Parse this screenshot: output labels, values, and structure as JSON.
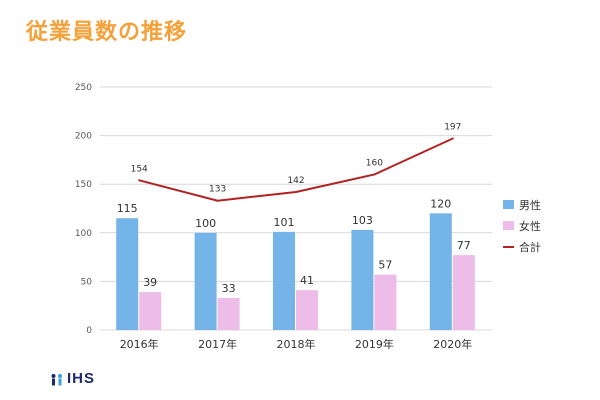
{
  "title": "従業員数の推移",
  "logo": {
    "text": "IHS",
    "icon": "ihs-logo-mark"
  },
  "colors": {
    "title": "#F5A13A",
    "male": "#74B4E8",
    "female": "#EEBCE9",
    "total": "#B22222",
    "grid": "#D9D9D9",
    "axis_text": "#595959"
  },
  "chart_data": {
    "type": "bar",
    "categories": [
      "2016年",
      "2017年",
      "2018年",
      "2019年",
      "2020年"
    ],
    "series": [
      {
        "name": "男性",
        "type": "bar",
        "values": [
          115,
          100,
          101,
          103,
          120
        ]
      },
      {
        "name": "女性",
        "type": "bar",
        "values": [
          39,
          33,
          41,
          57,
          77
        ]
      },
      {
        "name": "合計",
        "type": "line",
        "values": [
          154,
          133,
          142,
          160,
          197
        ]
      }
    ],
    "ylim": [
      0,
      250
    ],
    "yticks": [
      0,
      50,
      100,
      150,
      200,
      250
    ],
    "grid": true,
    "legend_position": "right"
  }
}
